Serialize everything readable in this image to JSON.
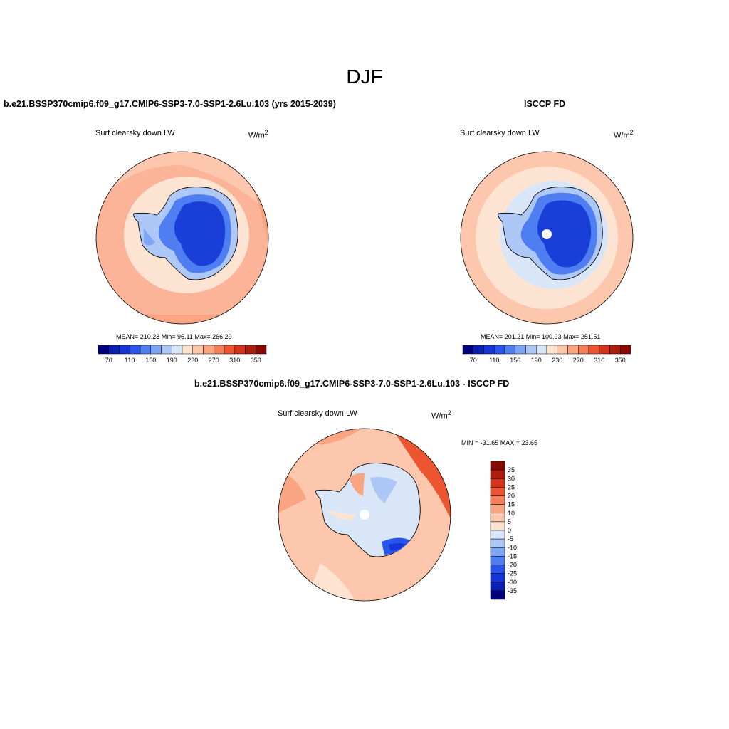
{
  "season_title": "DJF",
  "panels": [
    {
      "id": "model",
      "title": "b.e21.BSSP370cmip6.f09_g17.CMIP6-SSP3-7.0-SSP1-2.6Lu.103 (yrs 2015-2039)",
      "variable": "Surf clearsky down LW",
      "units": "W/m",
      "units_sup": "2",
      "stats": "MEAN= 210.28  Min=  95.11  Max= 266.29"
    },
    {
      "id": "obs",
      "title": "ISCCP FD",
      "variable": "Surf clearsky down LW",
      "units": "W/m",
      "units_sup": "2",
      "stats": "MEAN= 201.21  Min= 100.93  Max= 251.51"
    },
    {
      "id": "diff",
      "title": "b.e21.BSSP370cmip6.f09_g17.CMIP6-SSP3-7.0-SSP1-2.6Lu.103 - ISCCP FD",
      "variable": "Surf clearsky down LW",
      "units": "W/m",
      "units_sup": "2",
      "stats": "MIN = -31.65 MAX =  23.65"
    }
  ],
  "abs_colorbar": {
    "colors": [
      "#00007f",
      "#0a1fb4",
      "#1535d4",
      "#2a55ec",
      "#4f7df2",
      "#7ea5f4",
      "#adc8f6",
      "#d8e6f8",
      "#fde4d2",
      "#fcc7ad",
      "#f9a582",
      "#f57f58",
      "#ec5530",
      "#d3331a",
      "#ad1d0d",
      "#880a05"
    ],
    "tick_labels": [
      "70",
      "110",
      "150",
      "190",
      "230",
      "270",
      "310",
      "350"
    ]
  },
  "diff_colorbar": {
    "colors": [
      "#880a05",
      "#ad1d0d",
      "#d3331a",
      "#ec5530",
      "#f57f58",
      "#f9a582",
      "#fcc7ad",
      "#fde4d2",
      "#d8e6f8",
      "#adc8f6",
      "#7ea5f4",
      "#4f7df2",
      "#2a55ec",
      "#1535d4",
      "#0a1fb4",
      "#00007f"
    ],
    "tick_labels": [
      "35",
      "30",
      "25",
      "20",
      "15",
      "10",
      "5",
      "0",
      "-5",
      "-10",
      "-15",
      "-20",
      "-25",
      "-30",
      "-35"
    ]
  }
}
